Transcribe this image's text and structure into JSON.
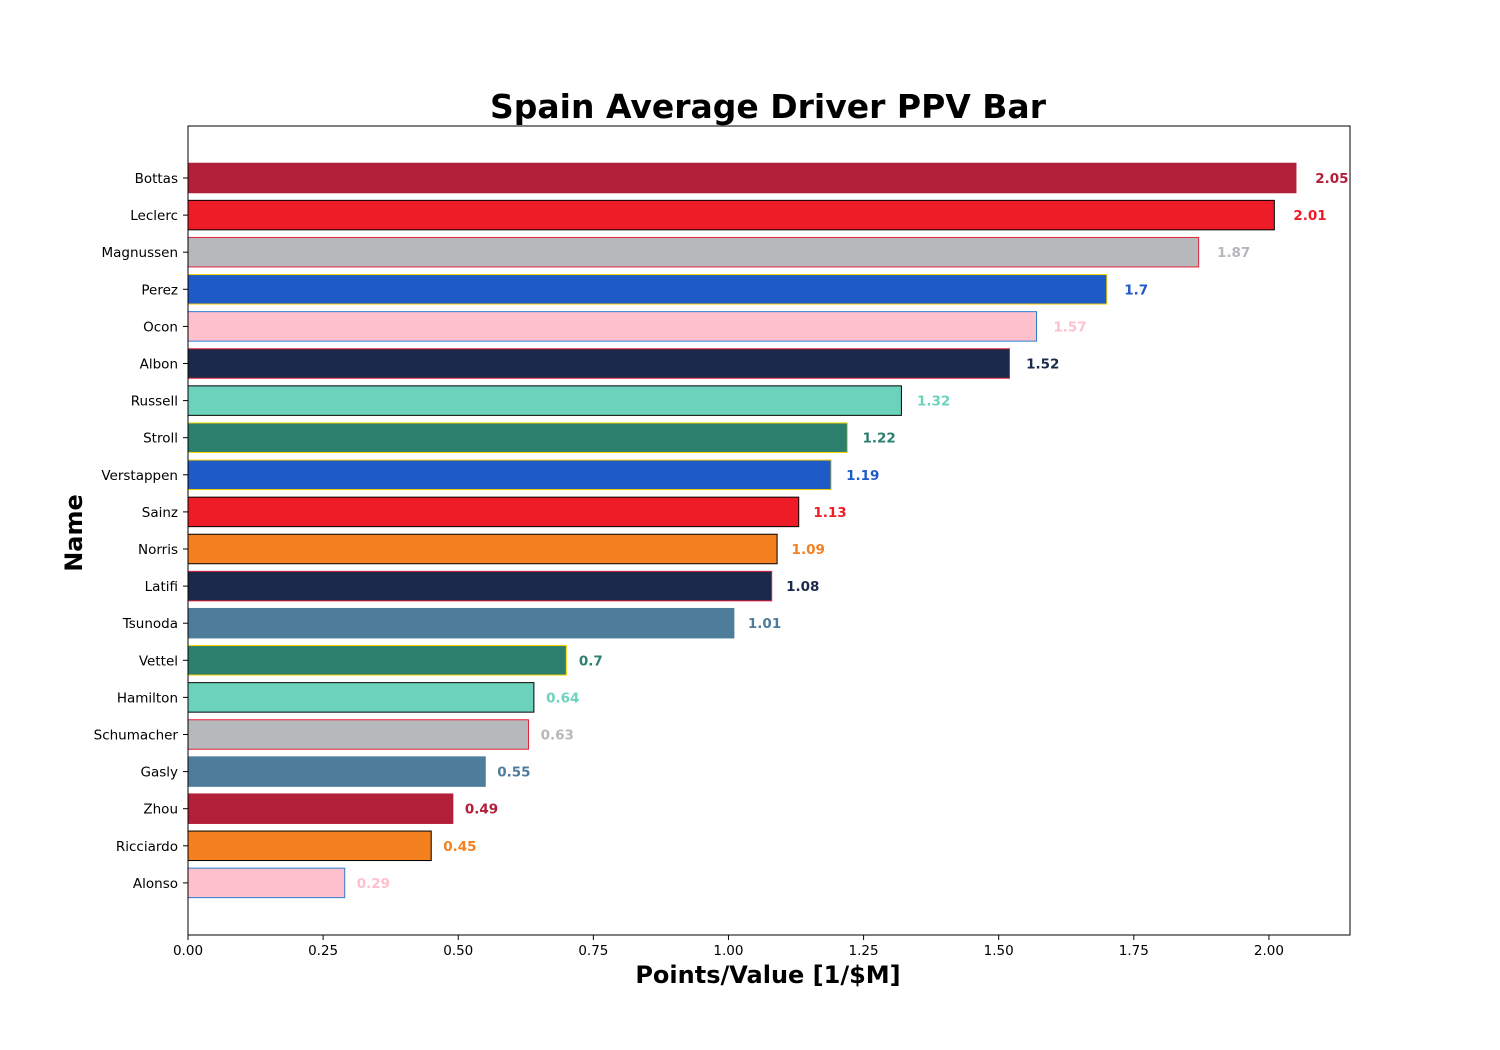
{
  "chart_data": {
    "type": "bar",
    "orientation": "horizontal",
    "title": "Spain Average Driver PPV Bar",
    "xlabel": "Points/Value [1/$M]",
    "ylabel": "Name",
    "xlim": [
      0,
      2.15
    ],
    "xticks": [
      "0.00",
      "0.25",
      "0.50",
      "0.75",
      "1.00",
      "1.25",
      "1.50",
      "1.75",
      "2.00"
    ],
    "grid": false,
    "legend": "none",
    "bars": [
      {
        "name": "Bottas",
        "value": 2.05,
        "label": "2.05",
        "color": "#B11F38",
        "edge": "#B11F38"
      },
      {
        "name": "Leclerc",
        "value": 2.01,
        "label": "2.01",
        "color": "#EE1C26",
        "edge": "#000000"
      },
      {
        "name": "Magnussen",
        "value": 1.87,
        "label": "1.87",
        "color": "#B6B8BB",
        "edge": "#E0223A"
      },
      {
        "name": "Perez",
        "value": 1.7,
        "label": "1.7",
        "color": "#1E5BC6",
        "edge": "#F7D100"
      },
      {
        "name": "Ocon",
        "value": 1.57,
        "label": "1.57",
        "color": "#FFC0CD",
        "edge": "#2B7FD0"
      },
      {
        "name": "Albon",
        "value": 1.52,
        "label": "1.52",
        "color": "#1B2A4A",
        "edge": "#E0223A"
      },
      {
        "name": "Russell",
        "value": 1.32,
        "label": "1.32",
        "color": "#6BD3BC",
        "edge": "#000000"
      },
      {
        "name": "Stroll",
        "value": 1.22,
        "label": "1.22",
        "color": "#2D7F6D",
        "edge": "#F7D100"
      },
      {
        "name": "Verstappen",
        "value": 1.19,
        "label": "1.19",
        "color": "#1E5BC6",
        "edge": "#F7D100"
      },
      {
        "name": "Sainz",
        "value": 1.13,
        "label": "1.13",
        "color": "#EE1C26",
        "edge": "#000000"
      },
      {
        "name": "Norris",
        "value": 1.09,
        "label": "1.09",
        "color": "#F58020",
        "edge": "#000000"
      },
      {
        "name": "Latifi",
        "value": 1.08,
        "label": "1.08",
        "color": "#1B2A4A",
        "edge": "#E0223A"
      },
      {
        "name": "Tsunoda",
        "value": 1.01,
        "label": "1.01",
        "color": "#4E7C9B",
        "edge": "#4E7C9B"
      },
      {
        "name": "Vettel",
        "value": 0.7,
        "label": "0.7",
        "color": "#2D7F6D",
        "edge": "#F7D100"
      },
      {
        "name": "Hamilton",
        "value": 0.64,
        "label": "0.64",
        "color": "#6BD3BC",
        "edge": "#000000"
      },
      {
        "name": "Schumacher",
        "value": 0.63,
        "label": "0.63",
        "color": "#B6B8BB",
        "edge": "#E0223A"
      },
      {
        "name": "Gasly",
        "value": 0.55,
        "label": "0.55",
        "color": "#4E7C9B",
        "edge": "#4E7C9B"
      },
      {
        "name": "Zhou",
        "value": 0.49,
        "label": "0.49",
        "color": "#B11F38",
        "edge": "#B11F38"
      },
      {
        "name": "Ricciardo",
        "value": 0.45,
        "label": "0.45",
        "color": "#F58020",
        "edge": "#000000"
      },
      {
        "name": "Alonso",
        "value": 0.29,
        "label": "0.29",
        "color": "#FFC0CD",
        "edge": "#2B7FD0"
      }
    ]
  }
}
